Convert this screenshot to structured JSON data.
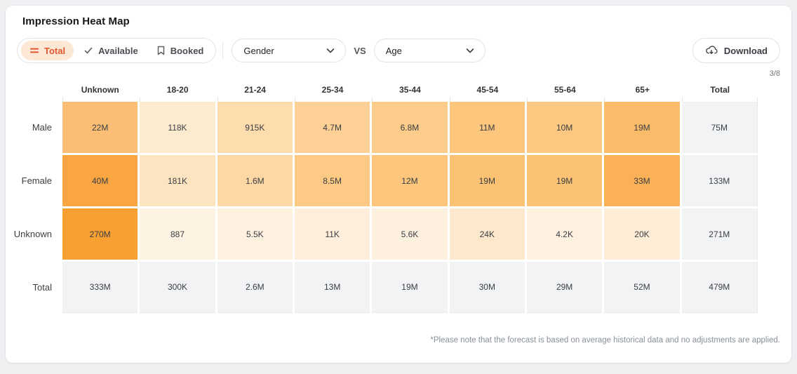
{
  "header": {
    "title": "Impression Heat Map"
  },
  "toolbar": {
    "modes": [
      {
        "label": "Total",
        "icon": "rows-icon",
        "active": true
      },
      {
        "label": "Available",
        "icon": "check-icon",
        "active": false
      },
      {
        "label": "Booked",
        "icon": "bookmark-icon",
        "active": false
      }
    ],
    "dimension_x": "Gender",
    "vs_label": "VS",
    "dimension_y": "Age",
    "download_label": "Download",
    "page_indicator": "3/8"
  },
  "colors": {
    "accent": "#e2572e",
    "accent_bg": "#fce8d4",
    "total_cell_bg": "#f2f3f4",
    "heat_max": "#f8a132",
    "heat_min": "#fef3e3"
  },
  "heatmap": {
    "col_headers": [
      "Unknown",
      "18-20",
      "21-24",
      "25-34",
      "35-44",
      "45-54",
      "55-64",
      "65+",
      "Total"
    ],
    "rows": [
      {
        "label": "Male",
        "cells": [
          {
            "value": "22M",
            "color": "#fcbe74"
          },
          {
            "value": "118K",
            "color": "#fdebd0"
          },
          {
            "value": "915K",
            "color": "#fddcad"
          },
          {
            "value": "4.7M",
            "color": "#fdd096"
          },
          {
            "value": "6.8M",
            "color": "#fccc8a"
          },
          {
            "value": "11M",
            "color": "#fcc67d"
          },
          {
            "value": "10M",
            "color": "#fcc781"
          },
          {
            "value": "19M",
            "color": "#fbbc69"
          },
          {
            "value": "75M",
            "color": "#f2f3f4"
          }
        ]
      },
      {
        "label": "Female",
        "cells": [
          {
            "value": "40M",
            "color": "#f9a642"
          },
          {
            "value": "181K",
            "color": "#fde4c0"
          },
          {
            "value": "1.6M",
            "color": "#fdd7a4"
          },
          {
            "value": "8.5M",
            "color": "#fcca84"
          },
          {
            "value": "12M",
            "color": "#fcc67c"
          },
          {
            "value": "19M",
            "color": "#fbc273"
          },
          {
            "value": "19M",
            "color": "#fbc273"
          },
          {
            "value": "33M",
            "color": "#fab158"
          },
          {
            "value": "133M",
            "color": "#f2f3f4"
          }
        ]
      },
      {
        "label": "Unknown",
        "cells": [
          {
            "value": "270M",
            "color": "#f8a132"
          },
          {
            "value": "887",
            "color": "#fef3e3"
          },
          {
            "value": "5.5K",
            "color": "#fef1df"
          },
          {
            "value": "11K",
            "color": "#feeedb"
          },
          {
            "value": "5.6K",
            "color": "#fef0de"
          },
          {
            "value": "24K",
            "color": "#fde8cb"
          },
          {
            "value": "4.2K",
            "color": "#fef1e0"
          },
          {
            "value": "20K",
            "color": "#feedd6"
          },
          {
            "value": "271M",
            "color": "#f2f3f4"
          }
        ]
      },
      {
        "label": "Total",
        "cells": [
          {
            "value": "333M",
            "color": "#f2f3f4"
          },
          {
            "value": "300K",
            "color": "#f2f3f4"
          },
          {
            "value": "2.6M",
            "color": "#f2f3f4"
          },
          {
            "value": "13M",
            "color": "#f2f3f4"
          },
          {
            "value": "19M",
            "color": "#f2f3f4"
          },
          {
            "value": "30M",
            "color": "#f2f3f4"
          },
          {
            "value": "29M",
            "color": "#f2f3f4"
          },
          {
            "value": "52M",
            "color": "#f2f3f4"
          },
          {
            "value": "479M",
            "color": "#f2f3f4"
          }
        ]
      }
    ]
  },
  "chart_data": {
    "type": "heatmap",
    "title": "Impression Heat Map",
    "x_categories": [
      "Unknown",
      "18-20",
      "21-24",
      "25-34",
      "35-44",
      "45-54",
      "55-64",
      "65+",
      "Total"
    ],
    "y_categories": [
      "Male",
      "Female",
      "Unknown",
      "Total"
    ],
    "values": [
      [
        "22M",
        "118K",
        "915K",
        "4.7M",
        "6.8M",
        "11M",
        "10M",
        "19M",
        "75M"
      ],
      [
        "40M",
        "181K",
        "1.6M",
        "8.5M",
        "12M",
        "19M",
        "19M",
        "33M",
        "133M"
      ],
      [
        "270M",
        "887",
        "5.5K",
        "11K",
        "5.6K",
        "24K",
        "4.2K",
        "20K",
        "271M"
      ],
      [
        "333M",
        "300K",
        "2.6M",
        "13M",
        "19M",
        "30M",
        "29M",
        "52M",
        "479M"
      ]
    ]
  },
  "footnote": "*Please note that the forecast is based on average historical data and no adjustments are applied."
}
